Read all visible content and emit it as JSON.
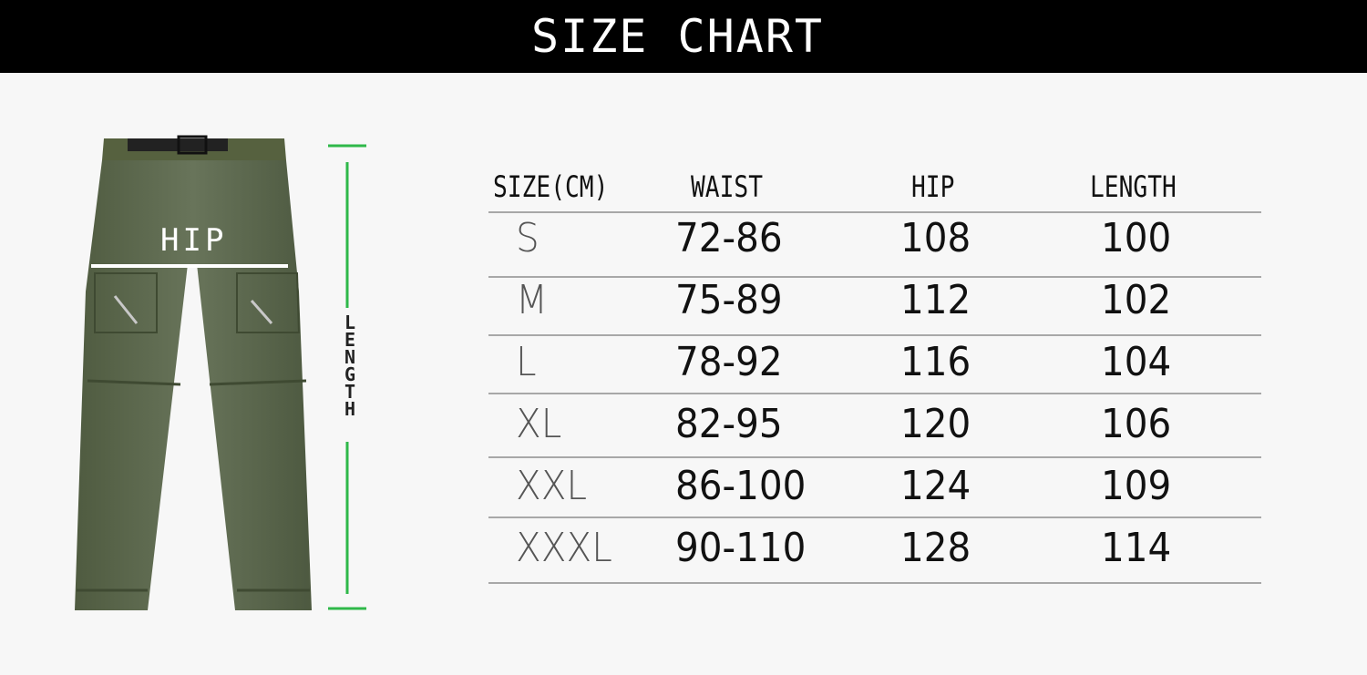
{
  "header": {
    "title": "SIZE CHART"
  },
  "figure": {
    "hip_label": "HIP",
    "length_label": "LENGTH",
    "pants_color": "#5f6b4e",
    "measure_line_color": "#2fb84a"
  },
  "table": {
    "columns": [
      "SIZE(CM)",
      "WAIST",
      "HIP",
      "LENGTH"
    ],
    "rows": [
      {
        "size": "S",
        "waist": "72-86",
        "hip": "108",
        "length": "100"
      },
      {
        "size": "M",
        "waist": "75-89",
        "hip": "112",
        "length": "102"
      },
      {
        "size": "L",
        "waist": "78-92",
        "hip": "116",
        "length": "104"
      },
      {
        "size": "XL",
        "waist": "82-95",
        "hip": "120",
        "length": "106"
      },
      {
        "size": "XXL",
        "waist": "86-100",
        "hip": "124",
        "length": "109"
      },
      {
        "size": "XXXL",
        "waist": "90-110",
        "hip": "128",
        "length": "114"
      }
    ]
  }
}
